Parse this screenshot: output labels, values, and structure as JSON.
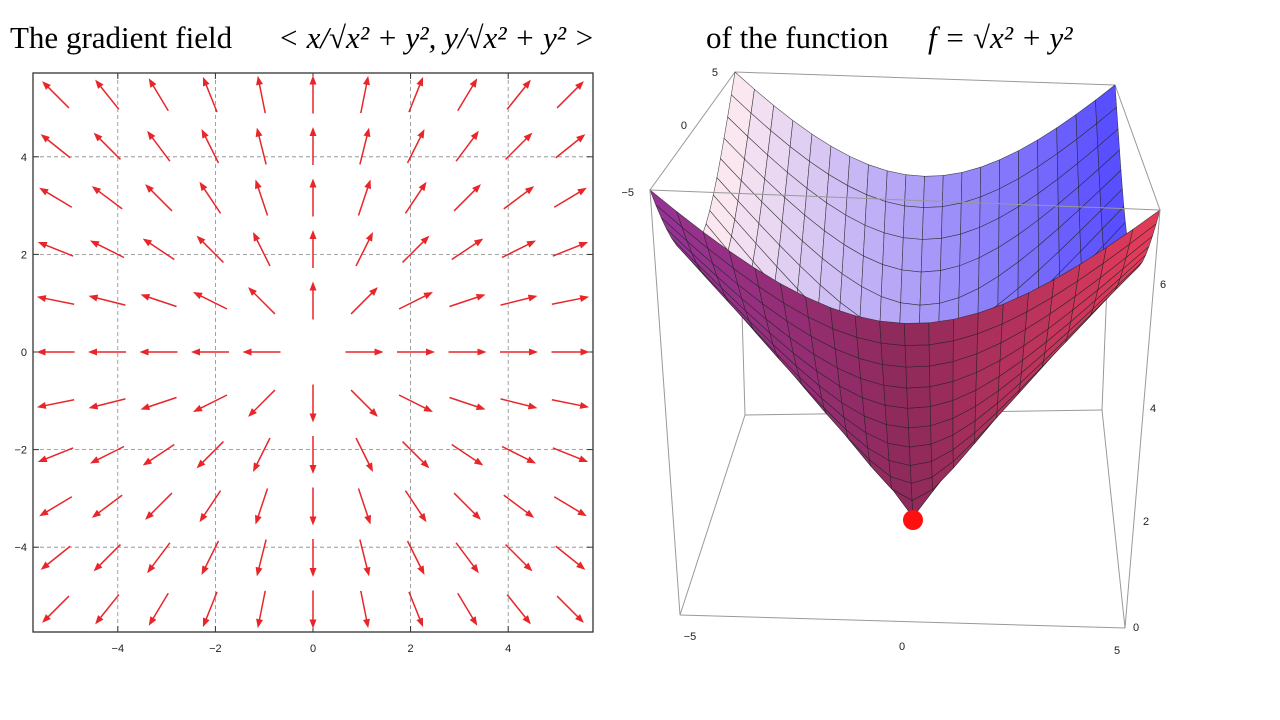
{
  "title": {
    "lead": "The gradient field",
    "field": "< x/√x² + y², y/√x² + y² >",
    "middle": "of the function",
    "function": "f =  √x² + y²"
  },
  "vector_plot": {
    "xticks": [
      "−4",
      "−2",
      "0",
      "2",
      "4"
    ],
    "yticks": [
      "4",
      "2",
      "0",
      "−2",
      "−4"
    ]
  },
  "surface_plot": {
    "x_labels": [
      "−5",
      "0",
      "5"
    ],
    "y_labels": [
      "5",
      "0",
      "−5"
    ],
    "z_labels": [
      "6",
      "4",
      "2",
      "0"
    ]
  }
}
